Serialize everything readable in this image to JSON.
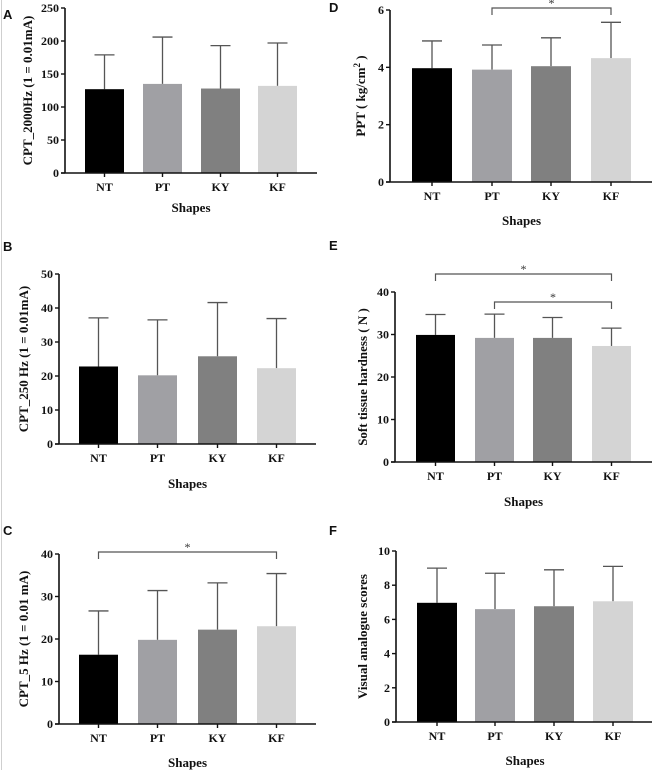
{
  "chart_data": [
    {
      "type": "bar",
      "panel": "A",
      "categories": [
        "NT",
        "PT",
        "KY",
        "KF"
      ],
      "values": [
        127,
        135,
        128,
        132
      ],
      "error_upper": [
        179,
        206,
        193,
        197
      ],
      "ylabel": "CPT_2000Hz (1 = 0.01mA)",
      "xlabel": "Shapes",
      "ylim": [
        0,
        250
      ],
      "yticks": [
        0,
        50,
        100,
        150,
        200,
        250
      ],
      "significance": []
    },
    {
      "type": "bar",
      "panel": "B",
      "categories": [
        "NT",
        "PT",
        "KY",
        "KF"
      ],
      "values": [
        22.8,
        20.2,
        25.8,
        22.3
      ],
      "error_upper": [
        37.1,
        36.5,
        41.6,
        36.9
      ],
      "ylabel": "CPT_250 Hz (1 = 0.01mA)",
      "xlabel": "Shapes",
      "ylim": [
        0,
        50
      ],
      "yticks": [
        0,
        10,
        20,
        30,
        40,
        50
      ],
      "significance": []
    },
    {
      "type": "bar",
      "panel": "C",
      "categories": [
        "NT",
        "PT",
        "KY",
        "KF"
      ],
      "values": [
        16.3,
        19.8,
        22.2,
        23.0
      ],
      "error_upper": [
        26.6,
        31.4,
        33.2,
        35.4
      ],
      "ylabel": "CPT_5 Hz (1 = 0.01 mA)",
      "xlabel": "Shapes",
      "ylim": [
        0,
        40
      ],
      "yticks": [
        0,
        10,
        20,
        30,
        40
      ],
      "significance": [
        {
          "from": "NT",
          "to": "KF",
          "label": "*"
        }
      ]
    },
    {
      "type": "bar",
      "panel": "D",
      "categories": [
        "NT",
        "PT",
        "KY",
        "KF"
      ],
      "values": [
        3.97,
        3.92,
        4.04,
        4.32
      ],
      "error_upper": [
        4.92,
        4.78,
        5.03,
        5.57
      ],
      "ylabel": "PPT ( kg/cm",
      "ylabel_sup": "2",
      "ylabel_end": " )",
      "xlabel": "Shapes",
      "ylim": [
        0,
        6
      ],
      "yticks": [
        0,
        2,
        4,
        6
      ],
      "significance": [
        {
          "from": "PT",
          "to": "KF",
          "label": "*"
        }
      ]
    },
    {
      "type": "bar",
      "panel": "E",
      "categories": [
        "NT",
        "PT",
        "KY",
        "KF"
      ],
      "values": [
        29.9,
        29.2,
        29.2,
        27.3
      ],
      "error_upper": [
        34.7,
        34.8,
        34.0,
        31.5
      ],
      "ylabel": "Soft tissue hardness ( N )",
      "xlabel": "Shapes",
      "ylim": [
        0,
        40
      ],
      "yticks": [
        0,
        10,
        20,
        30,
        40
      ],
      "significance": [
        {
          "from": "NT",
          "to": "KF",
          "label": "*"
        },
        {
          "from": "PT",
          "to": "KF",
          "label": "*"
        }
      ]
    },
    {
      "type": "bar",
      "panel": "F",
      "categories": [
        "NT",
        "PT",
        "KY",
        "KF"
      ],
      "values": [
        6.97,
        6.6,
        6.77,
        7.06
      ],
      "error_upper": [
        9.0,
        8.7,
        8.9,
        9.1
      ],
      "ylabel": "Visual analogue scores",
      "xlabel": "Shapes",
      "ylim": [
        0,
        10
      ],
      "yticks": [
        0,
        2,
        4,
        6,
        8,
        10
      ],
      "significance": []
    }
  ],
  "colors": {
    "NT": "#000000",
    "PT": "#a0a0a4",
    "KY": "#808080",
    "KF": "#d4d4d4",
    "error_bar": "#555555",
    "axis": "#111111",
    "bracket": "#555555"
  }
}
